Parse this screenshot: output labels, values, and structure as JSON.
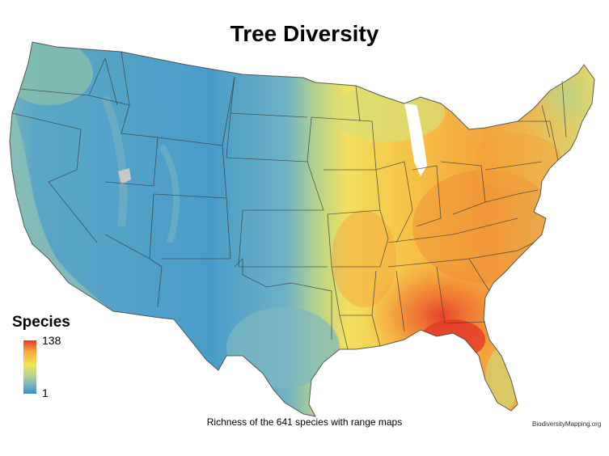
{
  "title": "Tree Diversity",
  "legend": {
    "title": "Species",
    "max_label": "138",
    "min_label": "1",
    "colors": [
      "#3a8fc4",
      "#6fb2c5",
      "#b9d58a",
      "#f4e35a",
      "#f5a43a",
      "#e8392a"
    ]
  },
  "caption": "Richness of the 641 species with range maps",
  "credit": "BiodiversityMapping.org",
  "map_colors": {
    "low": "#4a9cc8",
    "low_mid": "#7fb8c0",
    "mid": "#b5d38c",
    "mid_high": "#f2e05e",
    "high": "#f5a33c",
    "peak": "#e84a2a",
    "border": "#3a3a3a"
  }
}
